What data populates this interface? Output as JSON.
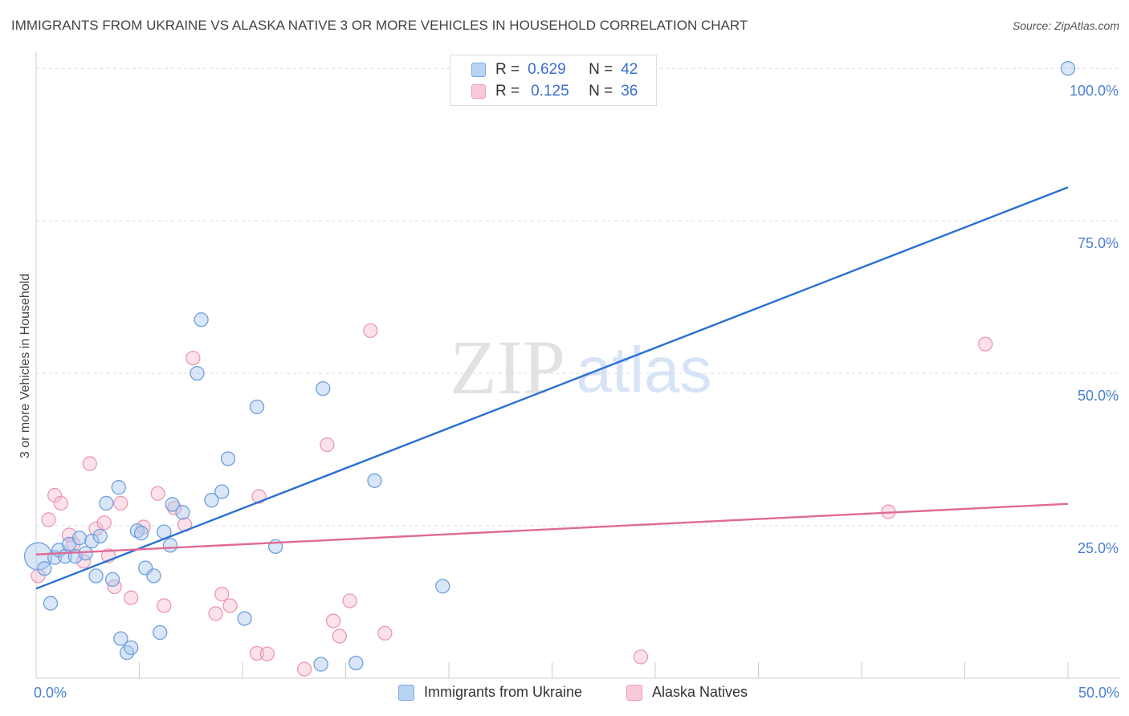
{
  "header": {
    "title": "IMMIGRANTS FROM UKRAINE VS ALASKA NATIVE 3 OR MORE VEHICLES IN HOUSEHOLD CORRELATION CHART",
    "source": "Source: ZipAtlas.com"
  },
  "watermark": {
    "zip": "ZIP",
    "atlas": "atlas"
  },
  "legend": {
    "ukraine": {
      "r_label": "R =",
      "r_value": "0.629",
      "n_label": "N =",
      "n_value": "42",
      "color": "#a9c8f0",
      "border": "#7aa8e0"
    },
    "alaska": {
      "r_label": "R =",
      "r_value": "0.125",
      "n_label": "N =",
      "n_value": "36",
      "color": "#f7bfd0",
      "border": "#ee9ab5"
    }
  },
  "bottom_legend": {
    "ukraine": "Immigrants from Ukraine",
    "alaska": "Alaska Natives"
  },
  "chart_data": {
    "type": "scatter",
    "title": "IMMIGRANTS FROM UKRAINE VS ALASKA NATIVE 3 OR MORE VEHICLES IN HOUSEHOLD CORRELATION CHART",
    "xlabel": "",
    "ylabel": "3 or more Vehicles in Household",
    "xlim": [
      0,
      50
    ],
    "ylim": [
      0,
      102
    ],
    "x_tick_labels": {
      "min": "0.0%",
      "max": "50.0%"
    },
    "y_ticks": [
      {
        "value": 25,
        "label": "25.0%"
      },
      {
        "value": 50,
        "label": "50.0%"
      },
      {
        "value": 75,
        "label": "75.0%"
      },
      {
        "value": 100,
        "label": "100.0%"
      }
    ],
    "grid": true,
    "series": [
      {
        "name": "Immigrants from Ukraine",
        "color": "#a9c8f0",
        "stroke": "#6f9fdc",
        "line_color": "#2b6fd6",
        "trend": {
          "x0": 0,
          "y0": 14.7,
          "x1": 50,
          "y1": 80.5
        },
        "points": [
          {
            "x": 0.1,
            "y": 20.0,
            "big": true
          },
          {
            "x": 0.4,
            "y": 18.0
          },
          {
            "x": 0.7,
            "y": 12.3
          },
          {
            "x": 0.9,
            "y": 19.8
          },
          {
            "x": 1.1,
            "y": 21.0
          },
          {
            "x": 1.4,
            "y": 20.0
          },
          {
            "x": 1.6,
            "y": 22.0
          },
          {
            "x": 1.9,
            "y": 20.0
          },
          {
            "x": 2.1,
            "y": 23.0
          },
          {
            "x": 2.4,
            "y": 20.5
          },
          {
            "x": 2.7,
            "y": 22.5
          },
          {
            "x": 2.9,
            "y": 16.8
          },
          {
            "x": 3.1,
            "y": 23.3
          },
          {
            "x": 3.4,
            "y": 28.7
          },
          {
            "x": 3.7,
            "y": 16.2
          },
          {
            "x": 4.0,
            "y": 31.3
          },
          {
            "x": 4.1,
            "y": 6.5
          },
          {
            "x": 4.4,
            "y": 4.2
          },
          {
            "x": 4.6,
            "y": 5.0
          },
          {
            "x": 4.9,
            "y": 24.2
          },
          {
            "x": 5.1,
            "y": 23.8
          },
          {
            "x": 5.3,
            "y": 18.1
          },
          {
            "x": 5.7,
            "y": 16.8
          },
          {
            "x": 6.0,
            "y": 7.5
          },
          {
            "x": 6.2,
            "y": 24.0
          },
          {
            "x": 6.5,
            "y": 21.8
          },
          {
            "x": 6.6,
            "y": 28.5
          },
          {
            "x": 7.1,
            "y": 27.2
          },
          {
            "x": 7.8,
            "y": 50.0
          },
          {
            "x": 8.0,
            "y": 58.8
          },
          {
            "x": 8.5,
            "y": 29.2
          },
          {
            "x": 9.0,
            "y": 30.6
          },
          {
            "x": 9.3,
            "y": 36.0
          },
          {
            "x": 10.1,
            "y": 9.8
          },
          {
            "x": 10.7,
            "y": 44.5
          },
          {
            "x": 11.6,
            "y": 21.6
          },
          {
            "x": 13.8,
            "y": 2.3
          },
          {
            "x": 13.9,
            "y": 47.5
          },
          {
            "x": 15.5,
            "y": 2.5
          },
          {
            "x": 16.4,
            "y": 32.4
          },
          {
            "x": 19.7,
            "y": 15.1
          },
          {
            "x": 50.0,
            "y": 100.0
          }
        ]
      },
      {
        "name": "Alaska Natives",
        "color": "#f7bfd0",
        "stroke": "#ec98b3",
        "line_color": "#e06a95",
        "trend": {
          "x0": 0,
          "y0": 20.3,
          "x1": 50,
          "y1": 28.6
        },
        "points": [
          {
            "x": 0.1,
            "y": 16.8
          },
          {
            "x": 0.6,
            "y": 26.0
          },
          {
            "x": 0.9,
            "y": 30.0
          },
          {
            "x": 1.2,
            "y": 28.7
          },
          {
            "x": 1.6,
            "y": 23.5
          },
          {
            "x": 1.8,
            "y": 22.0
          },
          {
            "x": 2.3,
            "y": 19.2
          },
          {
            "x": 2.6,
            "y": 35.2
          },
          {
            "x": 2.9,
            "y": 24.5
          },
          {
            "x": 3.3,
            "y": 25.5
          },
          {
            "x": 3.5,
            "y": 20.1
          },
          {
            "x": 3.8,
            "y": 15.0
          },
          {
            "x": 4.1,
            "y": 28.7
          },
          {
            "x": 4.6,
            "y": 13.2
          },
          {
            "x": 5.2,
            "y": 24.8
          },
          {
            "x": 5.9,
            "y": 30.3
          },
          {
            "x": 6.2,
            "y": 11.9
          },
          {
            "x": 6.7,
            "y": 27.9
          },
          {
            "x": 7.2,
            "y": 25.2
          },
          {
            "x": 7.6,
            "y": 52.5
          },
          {
            "x": 8.7,
            "y": 10.6
          },
          {
            "x": 9.0,
            "y": 13.8
          },
          {
            "x": 9.4,
            "y": 11.9
          },
          {
            "x": 10.7,
            "y": 4.1
          },
          {
            "x": 10.8,
            "y": 29.8
          },
          {
            "x": 11.2,
            "y": 4.0
          },
          {
            "x": 13.0,
            "y": 1.5
          },
          {
            "x": 14.1,
            "y": 38.3
          },
          {
            "x": 14.4,
            "y": 9.4
          },
          {
            "x": 14.7,
            "y": 6.9
          },
          {
            "x": 15.2,
            "y": 12.7
          },
          {
            "x": 16.2,
            "y": 57.0
          },
          {
            "x": 16.9,
            "y": 7.4
          },
          {
            "x": 29.3,
            "y": 3.5
          },
          {
            "x": 41.3,
            "y": 27.3
          },
          {
            "x": 46.0,
            "y": 54.8
          }
        ]
      }
    ]
  }
}
